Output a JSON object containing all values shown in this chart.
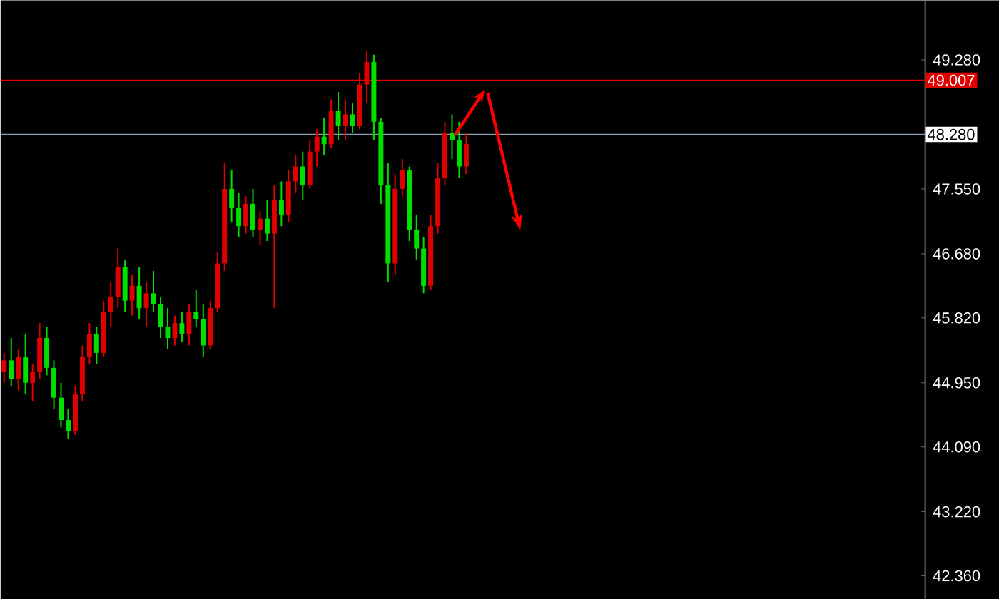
{
  "chart_data": {
    "type": "candlestick",
    "categories": [
      null,
      null,
      null,
      null,
      null,
      null,
      null,
      null,
      null,
      null,
      null,
      null,
      null,
      null,
      null,
      null,
      null,
      null,
      null,
      null,
      null,
      null,
      null,
      null,
      null,
      null,
      null,
      null,
      null,
      null,
      null,
      null,
      null,
      null,
      null,
      null,
      null,
      null,
      null,
      null,
      null,
      null,
      null,
      null,
      null,
      null,
      null,
      null,
      null,
      null,
      null,
      null,
      null,
      null,
      null,
      null,
      null,
      null,
      null,
      null,
      null,
      null,
      null,
      null,
      null,
      null,
      null,
      null,
      null,
      null,
      null,
      null,
      null,
      null,
      null,
      null,
      null,
      null,
      null,
      null,
      null,
      null,
      null,
      null,
      null,
      null,
      null,
      null,
      null,
      null,
      null,
      null,
      null,
      null,
      null,
      null,
      null,
      null,
      null,
      null,
      null,
      null,
      null,
      null,
      null,
      null,
      null,
      null,
      null,
      null,
      null,
      null,
      null,
      null,
      null,
      null,
      null,
      null,
      null,
      null,
      null,
      null,
      null,
      null,
      null,
      null,
      null,
      null,
      null,
      null
    ],
    "ohlc": [
      [
        45.1,
        45.35,
        44.95,
        45.25
      ],
      [
        45.25,
        45.55,
        44.9,
        45.0
      ],
      [
        45.0,
        45.4,
        44.85,
        45.3
      ],
      [
        45.3,
        45.6,
        44.8,
        44.95
      ],
      [
        44.95,
        45.2,
        44.7,
        45.1
      ],
      [
        45.1,
        45.75,
        45.0,
        45.55
      ],
      [
        45.55,
        45.7,
        45.05,
        45.15
      ],
      [
        45.15,
        45.25,
        44.6,
        44.75
      ],
      [
        44.75,
        44.95,
        44.35,
        44.45
      ],
      [
        44.45,
        44.6,
        44.2,
        44.3
      ],
      [
        44.3,
        44.9,
        44.25,
        44.8
      ],
      [
        44.8,
        45.45,
        44.7,
        45.3
      ],
      [
        45.3,
        45.75,
        45.2,
        45.6
      ],
      [
        45.6,
        45.7,
        45.2,
        45.35
      ],
      [
        45.35,
        46.05,
        45.3,
        45.9
      ],
      [
        45.9,
        46.3,
        45.7,
        46.1
      ],
      [
        46.1,
        46.75,
        45.95,
        46.5
      ],
      [
        46.5,
        46.6,
        45.9,
        46.05
      ],
      [
        46.05,
        46.4,
        45.85,
        46.25
      ],
      [
        46.25,
        46.5,
        45.8,
        45.95
      ],
      [
        45.95,
        46.3,
        45.7,
        46.15
      ],
      [
        46.15,
        46.45,
        45.9,
        46.0
      ],
      [
        46.0,
        46.1,
        45.55,
        45.7
      ],
      [
        45.7,
        45.95,
        45.4,
        45.55
      ],
      [
        45.55,
        45.85,
        45.45,
        45.75
      ],
      [
        45.75,
        45.9,
        45.5,
        45.6
      ],
      [
        45.6,
        46.0,
        45.45,
        45.9
      ],
      [
        45.9,
        46.2,
        45.7,
        45.8
      ],
      [
        45.8,
        46.0,
        45.3,
        45.45
      ],
      [
        45.45,
        46.05,
        45.4,
        45.95
      ],
      [
        45.95,
        46.7,
        45.9,
        46.55
      ],
      [
        46.55,
        47.9,
        46.45,
        47.55
      ],
      [
        47.55,
        47.8,
        47.1,
        47.3
      ],
      [
        47.3,
        47.5,
        46.9,
        47.05
      ],
      [
        47.05,
        47.45,
        46.95,
        47.35
      ],
      [
        47.35,
        47.55,
        46.9,
        47.0
      ],
      [
        47.0,
        47.25,
        46.8,
        47.15
      ],
      [
        47.15,
        47.4,
        46.85,
        46.95
      ],
      [
        46.95,
        47.6,
        45.95,
        47.4
      ],
      [
        47.4,
        47.65,
        47.05,
        47.2
      ],
      [
        47.2,
        47.8,
        47.1,
        47.65
      ],
      [
        47.65,
        48.0,
        47.5,
        47.85
      ],
      [
        47.85,
        48.05,
        47.4,
        47.6
      ],
      [
        47.6,
        48.2,
        47.55,
        48.05
      ],
      [
        48.05,
        48.35,
        47.85,
        48.25
      ],
      [
        48.25,
        48.5,
        48.0,
        48.15
      ],
      [
        48.15,
        48.75,
        48.1,
        48.6
      ],
      [
        48.6,
        48.85,
        48.2,
        48.4
      ],
      [
        48.4,
        48.75,
        48.2,
        48.55
      ],
      [
        48.55,
        48.7,
        48.3,
        48.4
      ],
      [
        48.4,
        49.1,
        48.35,
        48.95
      ],
      [
        48.95,
        49.4,
        48.7,
        49.25
      ],
      [
        49.25,
        49.35,
        48.2,
        48.45
      ],
      [
        48.45,
        48.5,
        47.35,
        47.6
      ],
      [
        47.6,
        47.9,
        46.3,
        46.55
      ],
      [
        46.55,
        47.75,
        46.4,
        47.55
      ],
      [
        47.55,
        47.95,
        47.45,
        47.8
      ],
      [
        47.8,
        47.85,
        46.85,
        47.0
      ],
      [
        47.0,
        47.2,
        46.6,
        46.75
      ],
      [
        46.75,
        46.9,
        46.15,
        46.25
      ],
      [
        46.25,
        47.2,
        46.2,
        47.05
      ],
      [
        47.05,
        47.9,
        46.95,
        47.7
      ],
      [
        47.7,
        48.45,
        47.6,
        48.3
      ],
      [
        48.3,
        48.55,
        47.95,
        48.2
      ],
      [
        48.2,
        48.45,
        47.7,
        47.85
      ],
      [
        47.85,
        48.3,
        47.75,
        48.15
      ],
      null,
      null,
      null,
      null,
      null,
      null,
      null,
      null,
      null,
      null,
      null,
      null,
      null,
      null,
      null,
      null,
      null,
      null,
      null,
      null,
      null,
      null,
      null,
      null,
      null,
      null,
      null,
      null,
      null,
      null,
      null,
      null,
      null,
      null,
      null,
      null,
      null,
      null,
      null,
      null,
      null,
      null,
      null,
      null,
      null,
      null,
      null,
      null,
      null,
      null,
      null,
      null,
      null,
      null,
      null,
      null,
      null,
      null,
      null,
      null,
      null,
      null,
      null,
      null
    ],
    "colors": [
      "#e00000",
      "#00e000",
      "#e00000",
      "#00e000",
      "#e00000",
      "#e00000",
      "#00e000",
      "#00e000",
      "#00e000",
      "#00e000",
      "#e00000",
      "#e00000",
      "#e00000",
      "#00e000",
      "#e00000",
      "#e00000",
      "#e00000",
      "#00e000",
      "#e00000",
      "#00e000",
      "#e00000",
      "#00e000",
      "#00e000",
      "#00e000",
      "#e00000",
      "#00e000",
      "#e00000",
      "#00e000",
      "#00e000",
      "#e00000",
      "#e00000",
      "#e00000",
      "#00e000",
      "#00e000",
      "#e00000",
      "#00e000",
      "#e00000",
      "#00e000",
      "#e00000",
      "#00e000",
      "#e00000",
      "#e00000",
      "#00e000",
      "#e00000",
      "#e00000",
      "#00e000",
      "#e00000",
      "#00e000",
      "#e00000",
      "#00e000",
      "#e00000",
      "#e00000",
      "#00e000",
      "#00e000",
      "#00e000",
      "#e00000",
      "#e00000",
      "#00e000",
      "#00e000",
      "#00e000",
      "#e00000",
      "#e00000",
      "#e00000",
      "#00e000",
      "#00e000",
      "#e00000",
      null,
      null,
      null,
      null,
      null,
      null,
      null,
      null,
      null,
      null,
      null,
      null,
      null,
      null,
      null,
      null,
      null,
      null,
      null,
      null,
      null,
      null,
      null,
      null,
      null,
      null,
      null,
      null,
      null,
      null,
      null,
      null,
      null,
      null,
      null,
      null,
      null,
      null,
      null,
      null,
      null,
      null,
      null,
      null,
      null,
      null,
      null,
      null,
      null,
      null,
      null,
      null,
      null,
      null,
      null,
      null,
      null,
      null,
      null,
      null,
      null,
      null,
      null,
      null
    ],
    "ylim": [
      42.05,
      50.08
    ],
    "yticks": [
      {
        "value": 42.36,
        "label": "42.360"
      },
      {
        "value": 43.22,
        "label": "43.220"
      },
      {
        "value": 44.09,
        "label": "44.090"
      },
      {
        "value": 44.95,
        "label": "44.950"
      },
      {
        "value": 45.82,
        "label": "45.820"
      },
      {
        "value": 46.68,
        "label": "46.680"
      },
      {
        "value": 47.55,
        "label": "47.550"
      },
      {
        "value": 49.28,
        "label": "49.280"
      }
    ],
    "ref_lines": [
      {
        "axis": "y",
        "value": 49.007,
        "label": "49.007",
        "color": "#e00000"
      },
      {
        "axis": "y",
        "value": 48.28,
        "label": "48.280",
        "color": "#8a9bb0"
      }
    ],
    "grid": false
  }
}
